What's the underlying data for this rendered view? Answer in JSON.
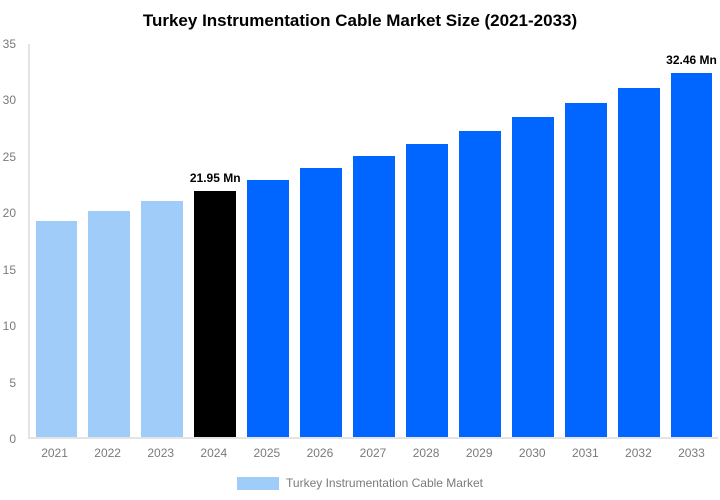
{
  "chart_data": {
    "type": "bar",
    "title": "Turkey Instrumentation Cable Market Size (2021-2033)",
    "xlabel": "",
    "ylabel": "",
    "unit": "Mn",
    "categories": [
      "2021",
      "2022",
      "2023",
      "2024",
      "2025",
      "2026",
      "2027",
      "2028",
      "2029",
      "2030",
      "2031",
      "2032",
      "2033"
    ],
    "values": [
      19.27,
      20.12,
      21.02,
      21.95,
      22.93,
      23.94,
      25.01,
      26.12,
      27.28,
      28.49,
      29.76,
      31.08,
      32.46
    ],
    "bar_roles": [
      "past",
      "past",
      "past",
      "current",
      "forecast",
      "forecast",
      "forecast",
      "forecast",
      "forecast",
      "forecast",
      "forecast",
      "forecast",
      "forecast"
    ],
    "point_labels": [
      "",
      "",
      "",
      "21.95 Mn",
      "",
      "",
      "",
      "",
      "",
      "",
      "",
      "",
      "32.46 Mn"
    ],
    "ylim": [
      0,
      35
    ],
    "yticks": [
      0,
      5,
      10,
      15,
      20,
      25,
      30,
      35
    ],
    "grid": false,
    "legend_position": "bottom",
    "legend": [
      "Turkey Instrumentation Cable Market"
    ],
    "colors": {
      "past": "#A0CCFA",
      "current": "#000000",
      "forecast": "#0066FF",
      "axis_text": "#7a7a7a",
      "axis_line": "#e4e4e4",
      "data_label": "#000000",
      "title": "#000000"
    }
  }
}
